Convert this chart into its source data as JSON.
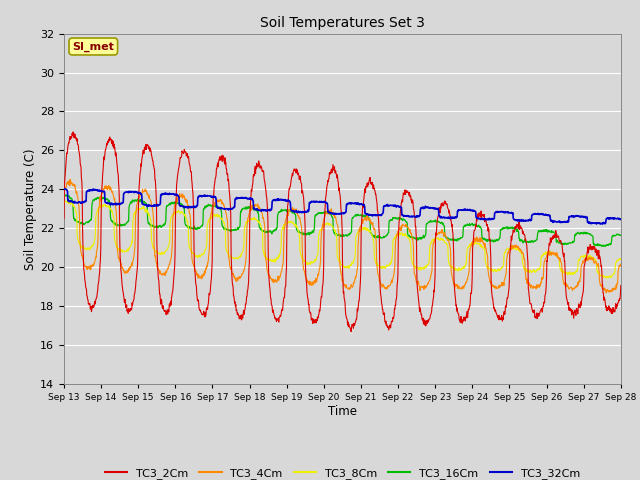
{
  "title": "Soil Temperatures Set 3",
  "xlabel": "Time",
  "ylabel": "Soil Temperature (C)",
  "ylim": [
    14,
    32
  ],
  "yticks": [
    14,
    16,
    18,
    20,
    22,
    24,
    26,
    28,
    30,
    32
  ],
  "plot_bg_color": "#d8d8d8",
  "grid_color": "#ffffff",
  "annotation_text": "SI_met",
  "annotation_bg": "#ffff99",
  "annotation_border": "#999900",
  "series_colors": {
    "TC3_2Cm": "#dd0000",
    "TC3_4Cm": "#ff8800",
    "TC3_8Cm": "#eeee00",
    "TC3_16Cm": "#00bb00",
    "TC3_32Cm": "#0000cc"
  },
  "start_day": 13,
  "end_day": 28,
  "n_points": 1440
}
